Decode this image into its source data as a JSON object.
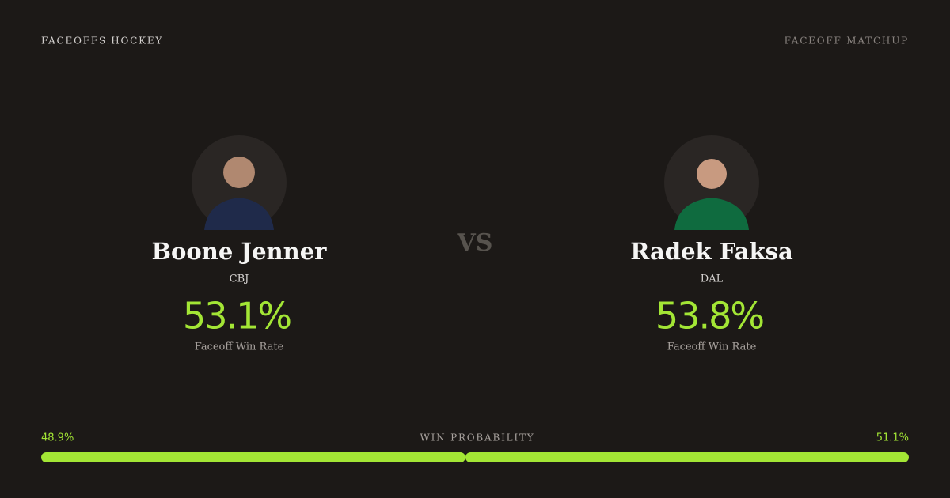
{
  "header": {
    "brand": "FACEOFFS.HOCKEY",
    "label": "FACEOFF MATCHUP"
  },
  "players": [
    {
      "name": "Boone Jenner",
      "team": "CBJ",
      "rate": "53.1%",
      "rate_label": "Faceoff Win Rate"
    },
    {
      "name": "Radek Faksa",
      "team": "DAL",
      "rate": "53.8%",
      "rate_label": "Faceoff Win Rate"
    }
  ],
  "versus": "VS",
  "win_probability": {
    "label": "WIN PROBABILITY",
    "values": [
      48.9,
      51.1
    ],
    "value_labels": [
      "48.9%",
      "51.1%"
    ],
    "color": "#a3e635"
  }
}
